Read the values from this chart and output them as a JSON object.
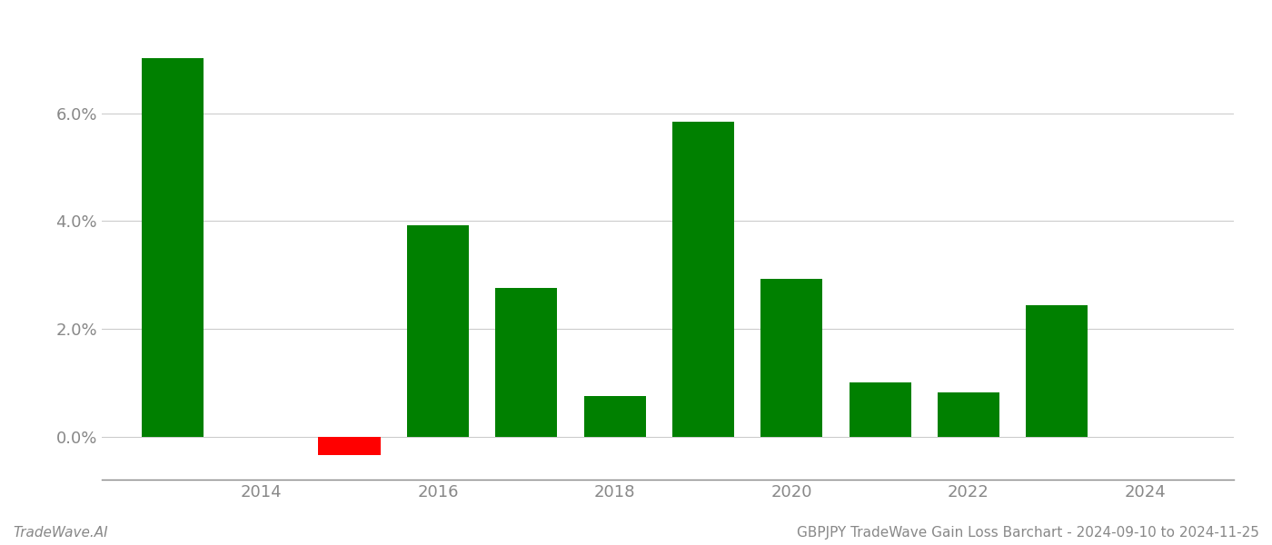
{
  "years": [
    2013,
    2015,
    2016,
    2017,
    2018,
    2019,
    2020,
    2021,
    2022,
    2023
  ],
  "values": [
    0.0703,
    -0.0035,
    0.0392,
    0.0275,
    0.0075,
    0.0585,
    0.0292,
    0.01,
    0.0082,
    0.0243
  ],
  "colors": [
    "#008000",
    "#ff0000",
    "#008000",
    "#008000",
    "#008000",
    "#008000",
    "#008000",
    "#008000",
    "#008000",
    "#008000"
  ],
  "bar_width": 0.7,
  "xlim": [
    2012.2,
    2025.0
  ],
  "ylim": [
    -0.008,
    0.078
  ],
  "yticks": [
    0.0,
    0.02,
    0.04,
    0.06
  ],
  "ytick_labels": [
    "0.0%",
    "2.0%",
    "4.0%",
    "6.0%"
  ],
  "xticks": [
    2014,
    2016,
    2018,
    2020,
    2022,
    2024
  ],
  "xtick_labels": [
    "2014",
    "2016",
    "2018",
    "2020",
    "2022",
    "2024"
  ],
  "footer_left": "TradeWave.AI",
  "footer_right": "GBPJPY TradeWave Gain Loss Barchart - 2024-09-10 to 2024-11-25",
  "bg_color": "#ffffff",
  "grid_color": "#cccccc",
  "spine_color": "#888888",
  "tick_color": "#888888",
  "footer_fontsize": 11,
  "axis_fontsize": 13
}
